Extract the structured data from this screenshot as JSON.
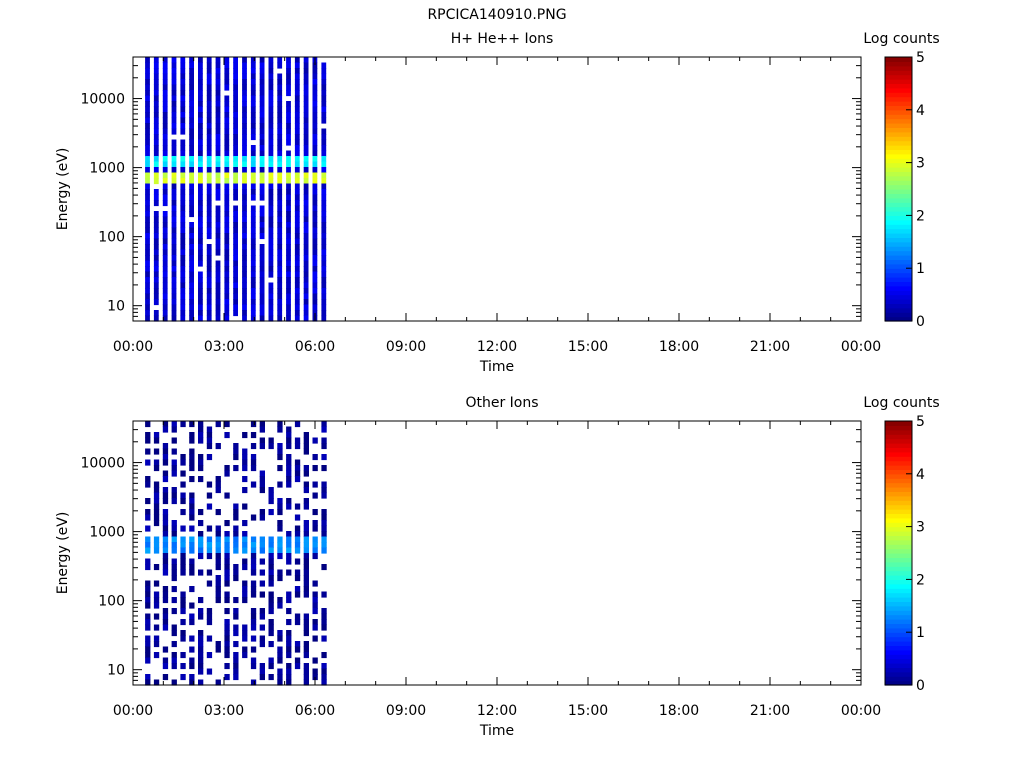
{
  "page_title": "RPCICA140910.PNG",
  "chart_data": [
    {
      "type": "heatmap",
      "title": "H+ He++ Ions",
      "xlabel": "Time",
      "ylabel": "Energy (eV)",
      "x_ticks": [
        "00:00",
        "03:00",
        "06:00",
        "09:00",
        "12:00",
        "15:00",
        "18:00",
        "21:00",
        "00:00"
      ],
      "xlim_hours": [
        0,
        24
      ],
      "y_scale": "log",
      "y_ticks": [
        10,
        100,
        1000,
        10000
      ],
      "y_tick_labels": [
        "10",
        "100",
        "1000",
        "10000"
      ],
      "ylim": [
        6,
        40000
      ],
      "data_range_hours": [
        0.4,
        6.5
      ],
      "sweeps": 21,
      "colorbar": {
        "label": "Log counts",
        "ticks": [
          "0",
          "1",
          "2",
          "3",
          "4",
          "5"
        ],
        "range": [
          0,
          5
        ],
        "colormap": "rainbow"
      },
      "bands": [
        {
          "energy_eV": [
            550,
            800
          ],
          "log_counts": 2.9
        },
        {
          "energy_eV": [
            1100,
            1500
          ],
          "log_counts": 1.8
        }
      ],
      "background_log_counts": 0.4
    },
    {
      "type": "heatmap",
      "title": "Other Ions",
      "xlabel": "Time",
      "ylabel": "Energy (eV)",
      "x_ticks": [
        "00:00",
        "03:00",
        "06:00",
        "09:00",
        "12:00",
        "15:00",
        "18:00",
        "21:00",
        "00:00"
      ],
      "xlim_hours": [
        0,
        24
      ],
      "y_scale": "log",
      "y_ticks": [
        10,
        100,
        1000,
        10000
      ],
      "y_tick_labels": [
        "10",
        "100",
        "1000",
        "10000"
      ],
      "ylim": [
        6,
        40000
      ],
      "data_range_hours": [
        0.4,
        6.5
      ],
      "sweeps": 21,
      "colorbar": {
        "label": "Log counts",
        "ticks": [
          "0",
          "1",
          "2",
          "3",
          "4",
          "5"
        ],
        "range": [
          0,
          5
        ],
        "colormap": "rainbow"
      },
      "bands": [
        {
          "energy_eV": [
            500,
            800
          ],
          "log_counts": 1.3
        }
      ],
      "background_log_counts": 0.1
    }
  ]
}
